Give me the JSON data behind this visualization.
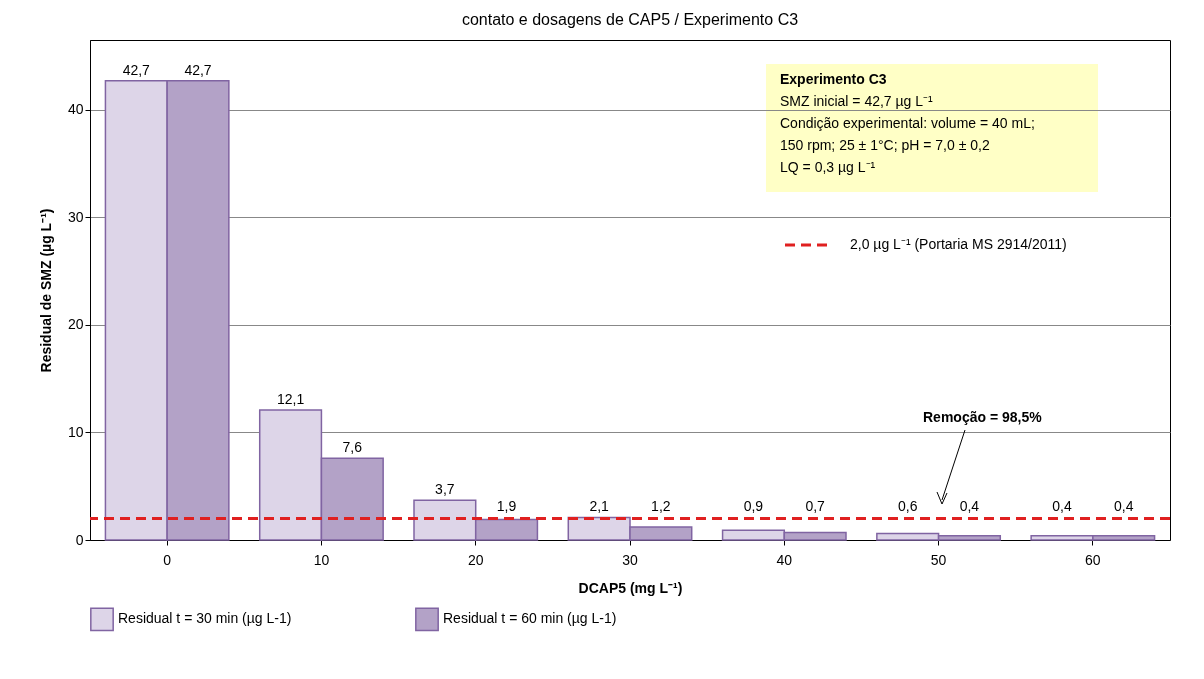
{
  "chart_data": {
    "type": "bar",
    "title": "contato e dosagens de CAP5 / Experimento C3",
    "xlabel": "DCAP5 (mg L⁻¹)",
    "ylabel": "Residual de SMZ (µg L⁻¹)",
    "categories": [
      "0",
      "10",
      "20",
      "30",
      "40",
      "50",
      "60"
    ],
    "series": [
      {
        "name": "Residual t = 30 min (µg L-1)",
        "color": "#ddd5e8",
        "values": [
          42.7,
          12.1,
          3.7,
          2.1,
          0.9,
          0.6,
          0.4
        ],
        "value_labels": [
          "42,7",
          "12,1",
          "3,7",
          "2,1",
          "0,9",
          "0,6",
          "0,4"
        ]
      },
      {
        "name": "Residual t = 60 min (µg L-1)",
        "color": "#b3a2c7",
        "values": [
          42.7,
          7.6,
          1.9,
          1.2,
          0.7,
          0.4,
          0.4
        ],
        "value_labels": [
          "42,7",
          "7,6",
          "1,9",
          "1,2",
          "0,7",
          "0,4",
          "0,4"
        ]
      }
    ],
    "ylim": [
      0,
      46.5
    ],
    "yticks": [
      0,
      10,
      20,
      30,
      40
    ],
    "grid": "y",
    "legend": "bottom",
    "ref_lines": [
      {
        "axis": "y",
        "value": 2,
        "label": "2,0 µg L⁻¹ (Portaria MS 2914/2011)",
        "color": "#e02020",
        "line_style": "dashed"
      }
    ],
    "annotations": [
      "Experimento C3",
      "SMZ inicial = 42,7 µg L⁻¹",
      "Condição experimental: volume = 40 mL;",
      "150 rpm; 25 ± 1°C; pH = 7,0 ± 0,2",
      "LQ = 0,3 µg L⁻¹",
      "Remoção = 98,5%"
    ]
  }
}
